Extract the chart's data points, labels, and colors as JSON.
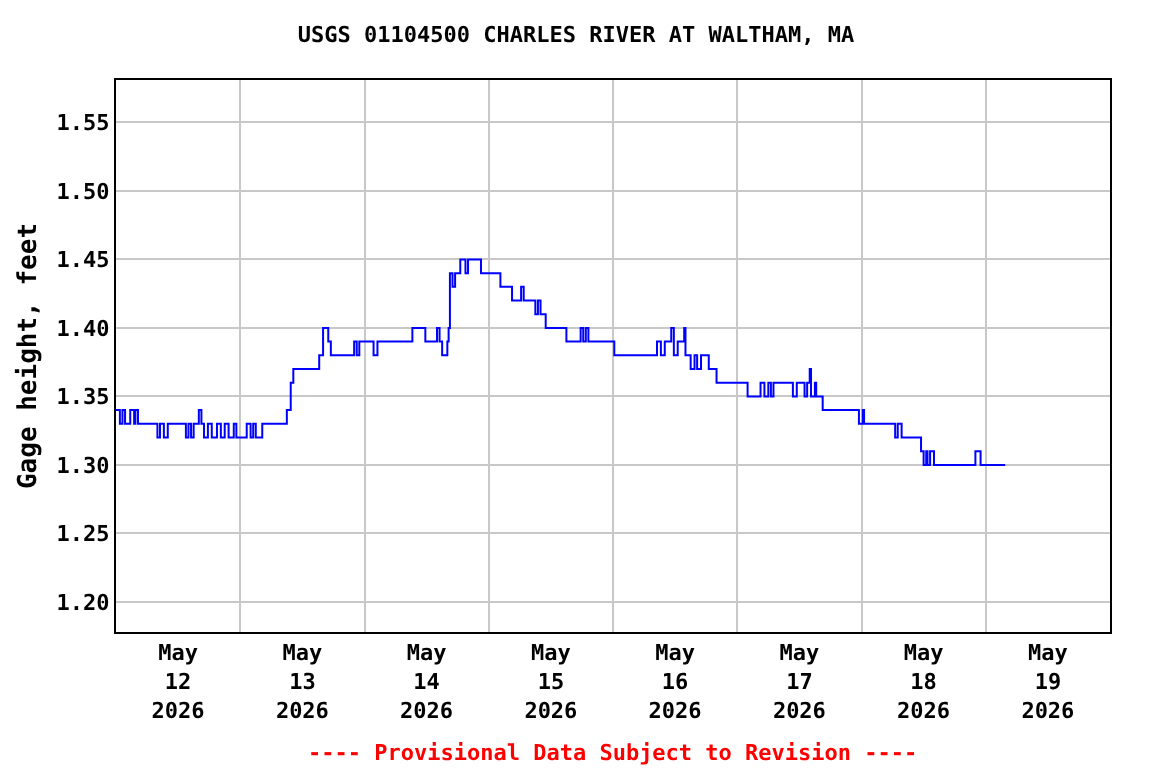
{
  "chart_data": {
    "type": "step",
    "title": "USGS 01104500 CHARLES RIVER AT WALTHAM, MA",
    "ylabel": "Gage height, feet",
    "annotations": [
      "---- Provisional Data Subject to Revision ----"
    ],
    "x": [
      "2026-05-12T00:00",
      "2026-05-12T00:45",
      "2026-05-12T01:15",
      "2026-05-12T01:45",
      "2026-05-12T02:45",
      "2026-05-12T03:30",
      "2026-05-12T03:45",
      "2026-05-12T04:15",
      "2026-05-12T08:00",
      "2026-05-12T08:30",
      "2026-05-12T09:15",
      "2026-05-12T10:00",
      "2026-05-12T13:30",
      "2026-05-12T14:00",
      "2026-05-12T14:30",
      "2026-05-12T15:00",
      "2026-05-12T16:00",
      "2026-05-12T16:30",
      "2026-05-12T17:00",
      "2026-05-12T17:45",
      "2026-05-12T18:30",
      "2026-05-12T19:30",
      "2026-05-12T20:15",
      "2026-05-12T21:00",
      "2026-05-12T21:45",
      "2026-05-12T22:45",
      "2026-05-12T23:15",
      "2026-05-13T01:15",
      "2026-05-13T02:00",
      "2026-05-13T02:30",
      "2026-05-13T03:00",
      "2026-05-13T04:15",
      "2026-05-13T09:00",
      "2026-05-13T09:45",
      "2026-05-13T10:15",
      "2026-05-13T15:15",
      "2026-05-13T16:00",
      "2026-05-13T17:00",
      "2026-05-13T17:30",
      "2026-05-13T22:00",
      "2026-05-13T22:30",
      "2026-05-13T23:00",
      "2026-05-14T01:45",
      "2026-05-14T02:30",
      "2026-05-14T09:15",
      "2026-05-14T11:45",
      "2026-05-14T14:00",
      "2026-05-14T14:30",
      "2026-05-14T15:00",
      "2026-05-14T16:00",
      "2026-05-14T16:15",
      "2026-05-14T16:30",
      "2026-05-14T17:00",
      "2026-05-14T17:30",
      "2026-05-14T18:30",
      "2026-05-14T19:30",
      "2026-05-14T20:00",
      "2026-05-14T22:30",
      "2026-05-15T02:15",
      "2026-05-15T04:30",
      "2026-05-15T06:15",
      "2026-05-15T06:45",
      "2026-05-15T09:00",
      "2026-05-15T09:30",
      "2026-05-15T10:00",
      "2026-05-15T11:00",
      "2026-05-15T15:00",
      "2026-05-15T17:45",
      "2026-05-15T18:15",
      "2026-05-15T18:45",
      "2026-05-15T19:15",
      "2026-05-16T00:15",
      "2026-05-16T08:30",
      "2026-05-16T09:15",
      "2026-05-16T10:00",
      "2026-05-16T11:15",
      "2026-05-16T11:45",
      "2026-05-16T12:30",
      "2026-05-16T13:45",
      "2026-05-16T14:00",
      "2026-05-16T15:00",
      "2026-05-16T15:45",
      "2026-05-16T16:15",
      "2026-05-16T17:00",
      "2026-05-16T18:30",
      "2026-05-16T20:00",
      "2026-05-17T02:00",
      "2026-05-17T04:30",
      "2026-05-17T05:15",
      "2026-05-17T06:00",
      "2026-05-17T06:30",
      "2026-05-17T07:00",
      "2026-05-17T10:45",
      "2026-05-17T11:30",
      "2026-05-17T13:00",
      "2026-05-17T13:30",
      "2026-05-17T14:00",
      "2026-05-17T14:15",
      "2026-05-17T15:00",
      "2026-05-17T15:15",
      "2026-05-17T16:30",
      "2026-05-17T23:30",
      "2026-05-18T00:15",
      "2026-05-18T00:30",
      "2026-05-18T06:30",
      "2026-05-18T07:00",
      "2026-05-18T07:45",
      "2026-05-18T11:30",
      "2026-05-18T12:00",
      "2026-05-18T12:30",
      "2026-05-18T12:45",
      "2026-05-18T13:15",
      "2026-05-18T14:00",
      "2026-05-18T22:00",
      "2026-05-18T23:00",
      "2026-05-19T03:45"
    ],
    "series": [
      {
        "color": "#0000ff",
        "values": [
          1.34,
          1.33,
          1.34,
          1.33,
          1.34,
          1.33,
          1.34,
          1.33,
          1.32,
          1.33,
          1.32,
          1.33,
          1.32,
          1.33,
          1.32,
          1.33,
          1.34,
          1.33,
          1.32,
          1.33,
          1.32,
          1.33,
          1.32,
          1.33,
          1.32,
          1.33,
          1.32,
          1.33,
          1.32,
          1.33,
          1.32,
          1.33,
          1.34,
          1.36,
          1.37,
          1.38,
          1.4,
          1.39,
          1.38,
          1.39,
          1.38,
          1.39,
          1.38,
          1.39,
          1.4,
          1.39,
          1.4,
          1.39,
          1.38,
          1.39,
          1.4,
          1.44,
          1.43,
          1.44,
          1.45,
          1.44,
          1.45,
          1.44,
          1.43,
          1.42,
          1.43,
          1.42,
          1.41,
          1.42,
          1.41,
          1.4,
          1.39,
          1.4,
          1.39,
          1.4,
          1.39,
          1.38,
          1.39,
          1.38,
          1.39,
          1.4,
          1.38,
          1.39,
          1.4,
          1.38,
          1.37,
          1.38,
          1.37,
          1.38,
          1.37,
          1.36,
          1.35,
          1.36,
          1.35,
          1.36,
          1.35,
          1.36,
          1.35,
          1.36,
          1.35,
          1.36,
          1.37,
          1.35,
          1.36,
          1.35,
          1.34,
          1.33,
          1.34,
          1.33,
          1.32,
          1.33,
          1.32,
          1.31,
          1.3,
          1.31,
          1.3,
          1.31,
          1.3,
          1.31,
          1.3,
          1.3
        ]
      }
    ],
    "xlim": [
      "2026-05-12T00:00",
      "2026-05-20T00:00"
    ],
    "xticks": [
      {
        "value": "2026-05-12T00:00",
        "label": null
      },
      {
        "value": "2026-05-12T12:00",
        "label": "May\n12\n2026"
      },
      {
        "value": "2026-05-13T00:00",
        "label": null
      },
      {
        "value": "2026-05-13T12:00",
        "label": "May\n13\n2026"
      },
      {
        "value": "2026-05-14T00:00",
        "label": null
      },
      {
        "value": "2026-05-14T12:00",
        "label": "May\n14\n2026"
      },
      {
        "value": "2026-05-15T00:00",
        "label": null
      },
      {
        "value": "2026-05-15T12:00",
        "label": "May\n15\n2026"
      },
      {
        "value": "2026-05-16T00:00",
        "label": null
      },
      {
        "value": "2026-05-16T12:00",
        "label": "May\n16\n2026"
      },
      {
        "value": "2026-05-17T00:00",
        "label": null
      },
      {
        "value": "2026-05-17T12:00",
        "label": "May\n17\n2026"
      },
      {
        "value": "2026-05-18T00:00",
        "label": null
      },
      {
        "value": "2026-05-18T12:00",
        "label": "May\n18\n2026"
      },
      {
        "value": "2026-05-19T00:00",
        "label": null
      },
      {
        "value": "2026-05-19T12:00",
        "label": "May\n19\n2026"
      },
      {
        "value": "2026-05-20T00:00",
        "label": null
      }
    ],
    "ylim": [
      1.178,
      1.581
    ],
    "yticks": [
      {
        "value": 1.2,
        "label": "1.20"
      },
      1.25,
      {
        "value": 1.3,
        "label": "1.30"
      },
      1.35,
      {
        "value": 1.4,
        "label": "1.40"
      },
      1.45,
      {
        "value": 1.5,
        "label": "1.50"
      },
      1.55
    ],
    "grid": true,
    "marker": "none",
    "line_style": "solid"
  }
}
